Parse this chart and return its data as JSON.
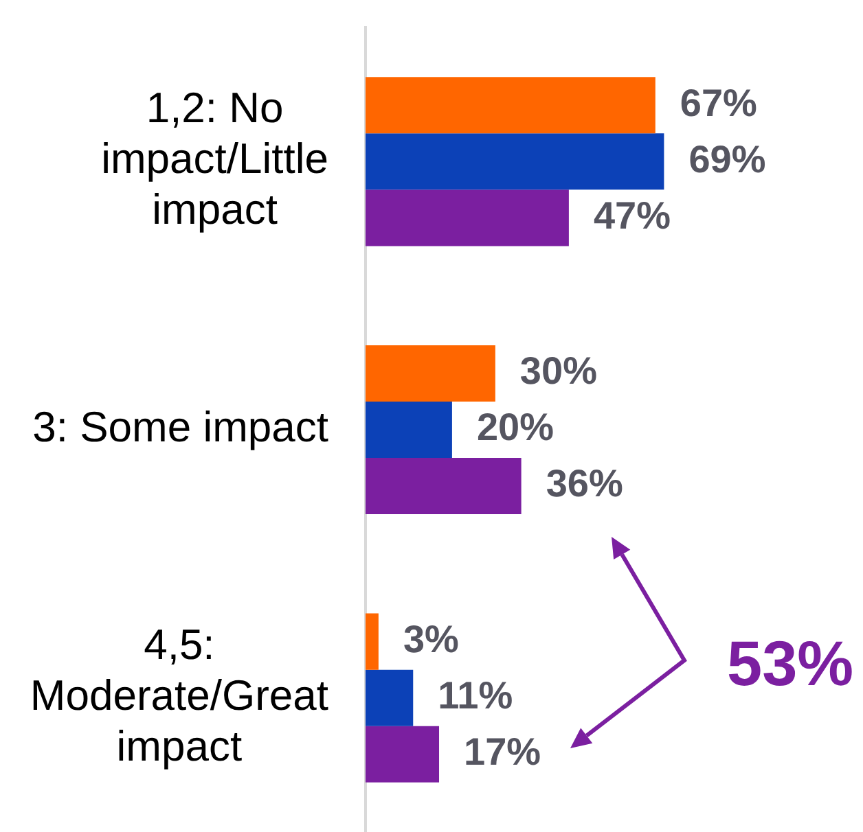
{
  "chart_data": {
    "type": "bar",
    "orientation": "horizontal",
    "tick_labels": "y",
    "categories": [
      "1,2: No impact/Little impact",
      "3: Some impact",
      "4,5: Moderate/Great impact"
    ],
    "series": [
      {
        "color": "#ff6600",
        "values": [
          67,
          30,
          3
        ],
        "value_labels": [
          "67%",
          "30%",
          "3%"
        ]
      },
      {
        "color": "#0c41b7",
        "values": [
          69,
          20,
          11
        ],
        "value_labels": [
          "69%",
          "20%",
          "11%"
        ]
      },
      {
        "color": "#7b1fa0",
        "values": [
          47,
          36,
          17
        ],
        "value_labels": [
          "47%",
          "36%",
          "17%"
        ]
      }
    ],
    "annotations": [
      "53%"
    ]
  }
}
